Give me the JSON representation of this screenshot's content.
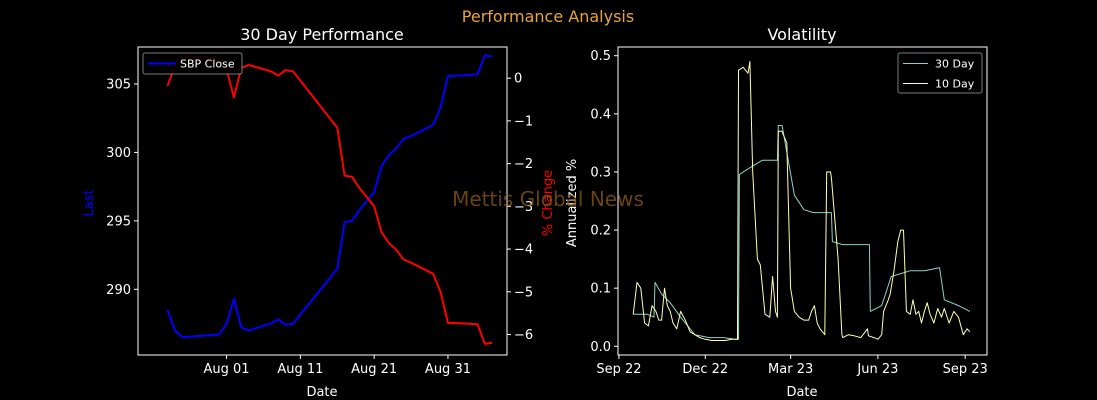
{
  "figure": {
    "suptitle": "Performance Analysis",
    "watermark": "Mettis Global News",
    "colors": {
      "background": "#000000",
      "suptitle": "#e8a33c",
      "axes_text": "#ffffff",
      "watermark": "#8a5a1e",
      "price_line": "#0000ff",
      "pct_line": "#ff0000",
      "vol30": "#8dd3c7",
      "vol10": "#ffffb3"
    }
  },
  "chart_data": [
    {
      "type": "line",
      "title": "30 Day Performance",
      "xlabel": "Date",
      "ylabel": "Last",
      "ylabel_right": "% Change",
      "legend": {
        "position": "upper-left",
        "entries": [
          "SBP Close"
        ]
      },
      "grid": false,
      "x_ticks": [
        "Aug 01",
        "Aug 11",
        "Aug 21",
        "Aug 31"
      ],
      "y_ticks": [
        "290",
        "295",
        "300",
        "305"
      ],
      "y2_ticks": [
        "0",
        "−1",
        "−2",
        "−3",
        "−4",
        "−5",
        "−6"
      ],
      "x_range": [
        "2023-07-20",
        "2023-09-08"
      ],
      "ylim": [
        285.2,
        307.7
      ],
      "y2lim": [
        -6.48,
        0.73
      ],
      "series": [
        {
          "name": "SBP Close",
          "axis": "left",
          "x": [
            "2023-07-24",
            "2023-07-25",
            "2023-07-26",
            "2023-07-31",
            "2023-08-01",
            "2023-08-02",
            "2023-08-03",
            "2023-08-04",
            "2023-08-07",
            "2023-08-08",
            "2023-08-09",
            "2023-08-10",
            "2023-08-16",
            "2023-08-17",
            "2023-08-18",
            "2023-08-19",
            "2023-08-21",
            "2023-08-22",
            "2023-08-23",
            "2023-08-24",
            "2023-08-25",
            "2023-08-26",
            "2023-08-29",
            "2023-08-30",
            "2023-08-31",
            "2023-09-01",
            "2023-09-04",
            "2023-09-05",
            "2023-09-06"
          ],
          "values": [
            288.5,
            287.0,
            286.5,
            286.7,
            287.5,
            289.3,
            287.2,
            287.0,
            287.5,
            287.8,
            287.4,
            287.5,
            291.5,
            294.9,
            295.0,
            295.8,
            297.1,
            299.0,
            299.8,
            300.3,
            301.0,
            301.2,
            302.0,
            303.3,
            305.6,
            305.6,
            305.7,
            307.1,
            307.0
          ]
        },
        {
          "name": "% Change",
          "axis": "right",
          "x": [
            "2023-07-24",
            "2023-07-25",
            "2023-07-26",
            "2023-07-31",
            "2023-08-01",
            "2023-08-02",
            "2023-08-03",
            "2023-08-04",
            "2023-08-07",
            "2023-08-08",
            "2023-08-09",
            "2023-08-10",
            "2023-08-16",
            "2023-08-17",
            "2023-08-18",
            "2023-08-19",
            "2023-08-21",
            "2023-08-22",
            "2023-08-23",
            "2023-08-24",
            "2023-08-25",
            "2023-08-26",
            "2023-08-29",
            "2023-08-30",
            "2023-08-31",
            "2023-09-01",
            "2023-09-04",
            "2023-09-05",
            "2023-09-06"
          ],
          "values": [
            -0.18,
            0.29,
            0.52,
            0.45,
            0.2,
            -0.45,
            0.24,
            0.31,
            0.16,
            0.06,
            0.19,
            0.16,
            -1.16,
            -2.28,
            -2.31,
            -2.57,
            -3.0,
            -3.6,
            -3.86,
            -4.02,
            -4.25,
            -4.32,
            -4.58,
            -5.01,
            -5.73,
            -5.73,
            -5.76,
            -6.22,
            -6.19
          ]
        }
      ]
    },
    {
      "type": "line",
      "title": "Volatility",
      "xlabel": "Date",
      "ylabel": "Annualized %",
      "legend": {
        "position": "upper-right",
        "entries": [
          "30 Day",
          "10 Day"
        ]
      },
      "grid": false,
      "x_ticks": [
        "Sep 22",
        "Dec 22",
        "Mar 23",
        "Jun 23",
        "Sep 23"
      ],
      "y_ticks": [
        "0.0",
        "0.1",
        "0.2",
        "0.3",
        "0.4",
        "0.5"
      ],
      "x_range": [
        "2022-08-31",
        "2023-09-24"
      ],
      "ylim": [
        -0.015,
        0.515
      ],
      "series": [
        {
          "name": "30 Day",
          "x": [
            "2022-09-16",
            "2022-10-01",
            "2022-10-08",
            "2022-10-09",
            "2022-10-16",
            "2022-10-25",
            "2022-11-05",
            "2022-11-15",
            "2022-11-20",
            "2022-12-05",
            "2022-12-20",
            "2023-01-02",
            "2023-01-05",
            "2023-01-06",
            "2023-01-10",
            "2023-01-20",
            "2023-01-30",
            "2023-02-06",
            "2023-02-08",
            "2023-02-15",
            "2023-02-16",
            "2023-02-20",
            "2023-03-05",
            "2023-03-15",
            "2023-03-25",
            "2023-04-05",
            "2023-04-13",
            "2023-04-14",
            "2023-04-25",
            "2023-05-10",
            "2023-05-23",
            "2023-05-24",
            "2023-06-05",
            "2023-06-15",
            "2023-06-25",
            "2023-07-05",
            "2023-07-20",
            "2023-08-05",
            "2023-08-10",
            "2023-08-25",
            "2023-09-06"
          ],
          "values": [
            0.055,
            0.055,
            0.05,
            0.11,
            0.09,
            0.075,
            0.05,
            0.03,
            0.02,
            0.015,
            0.015,
            0.012,
            0.012,
            0.295,
            0.3,
            0.31,
            0.32,
            0.32,
            0.32,
            0.32,
            0.38,
            0.38,
            0.26,
            0.235,
            0.23,
            0.23,
            0.23,
            0.18,
            0.175,
            0.175,
            0.175,
            0.06,
            0.07,
            0.12,
            0.125,
            0.13,
            0.13,
            0.135,
            0.08,
            0.07,
            0.06
          ]
        },
        {
          "name": "10 Day",
          "x": [
            "2022-09-16",
            "2022-09-20",
            "2022-09-24",
            "2022-09-28",
            "2022-10-02",
            "2022-10-06",
            "2022-10-10",
            "2022-10-13",
            "2022-10-16",
            "2022-10-19",
            "2022-10-22",
            "2022-10-25",
            "2022-10-28",
            "2022-11-01",
            "2022-11-05",
            "2022-11-10",
            "2022-11-15",
            "2022-11-20",
            "2022-11-25",
            "2022-12-01",
            "2022-12-08",
            "2022-12-15",
            "2022-12-22",
            "2022-12-29",
            "2023-01-04",
            "2023-01-05",
            "2023-01-10",
            "2023-01-15",
            "2023-01-17",
            "2023-01-20",
            "2023-01-25",
            "2023-01-28",
            "2023-02-02",
            "2023-02-07",
            "2023-02-10",
            "2023-02-13",
            "2023-02-15",
            "2023-02-16",
            "2023-02-20",
            "2023-02-21",
            "2023-02-25",
            "2023-03-01",
            "2023-03-05",
            "2023-03-10",
            "2023-03-15",
            "2023-03-20",
            "2023-03-23",
            "2023-03-26",
            "2023-03-29",
            "2023-04-01",
            "2023-04-06",
            "2023-04-08",
            "2023-04-10",
            "2023-04-12",
            "2023-04-13",
            "2023-04-20",
            "2023-04-24",
            "2023-04-25",
            "2023-05-01",
            "2023-05-07",
            "2023-05-14",
            "2023-05-21",
            "2023-05-22",
            "2023-05-28",
            "2023-06-01",
            "2023-06-05",
            "2023-06-07",
            "2023-06-12",
            "2023-06-14",
            "2023-06-18",
            "2023-06-22",
            "2023-06-25",
            "2023-06-28",
            "2023-07-01",
            "2023-07-05",
            "2023-07-08",
            "2023-07-11",
            "2023-07-14",
            "2023-07-17",
            "2023-07-20",
            "2023-07-23",
            "2023-07-26",
            "2023-07-30",
            "2023-08-03",
            "2023-08-07",
            "2023-08-10",
            "2023-08-15",
            "2023-08-20",
            "2023-08-25",
            "2023-08-30",
            "2023-09-03",
            "2023-09-06"
          ],
          "values": [
            0.055,
            0.11,
            0.1,
            0.04,
            0.035,
            0.07,
            0.06,
            0.045,
            0.045,
            0.1,
            0.07,
            0.06,
            0.04,
            0.03,
            0.06,
            0.045,
            0.025,
            0.02,
            0.015,
            0.012,
            0.01,
            0.01,
            0.01,
            0.012,
            0.012,
            0.475,
            0.48,
            0.47,
            0.49,
            0.3,
            0.15,
            0.14,
            0.055,
            0.05,
            0.12,
            0.06,
            0.05,
            0.37,
            0.37,
            0.365,
            0.35,
            0.1,
            0.06,
            0.05,
            0.045,
            0.045,
            0.06,
            0.07,
            0.04,
            0.03,
            0.02,
            0.3,
            0.3,
            0.3,
            0.29,
            0.15,
            0.02,
            0.015,
            0.02,
            0.018,
            0.015,
            0.03,
            0.018,
            0.015,
            0.012,
            0.02,
            0.06,
            0.08,
            0.09,
            0.13,
            0.18,
            0.2,
            0.2,
            0.06,
            0.055,
            0.08,
            0.055,
            0.06,
            0.04,
            0.06,
            0.075,
            0.055,
            0.04,
            0.065,
            0.05,
            0.065,
            0.04,
            0.06,
            0.05,
            0.02,
            0.03,
            0.025
          ]
        }
      ]
    }
  ]
}
